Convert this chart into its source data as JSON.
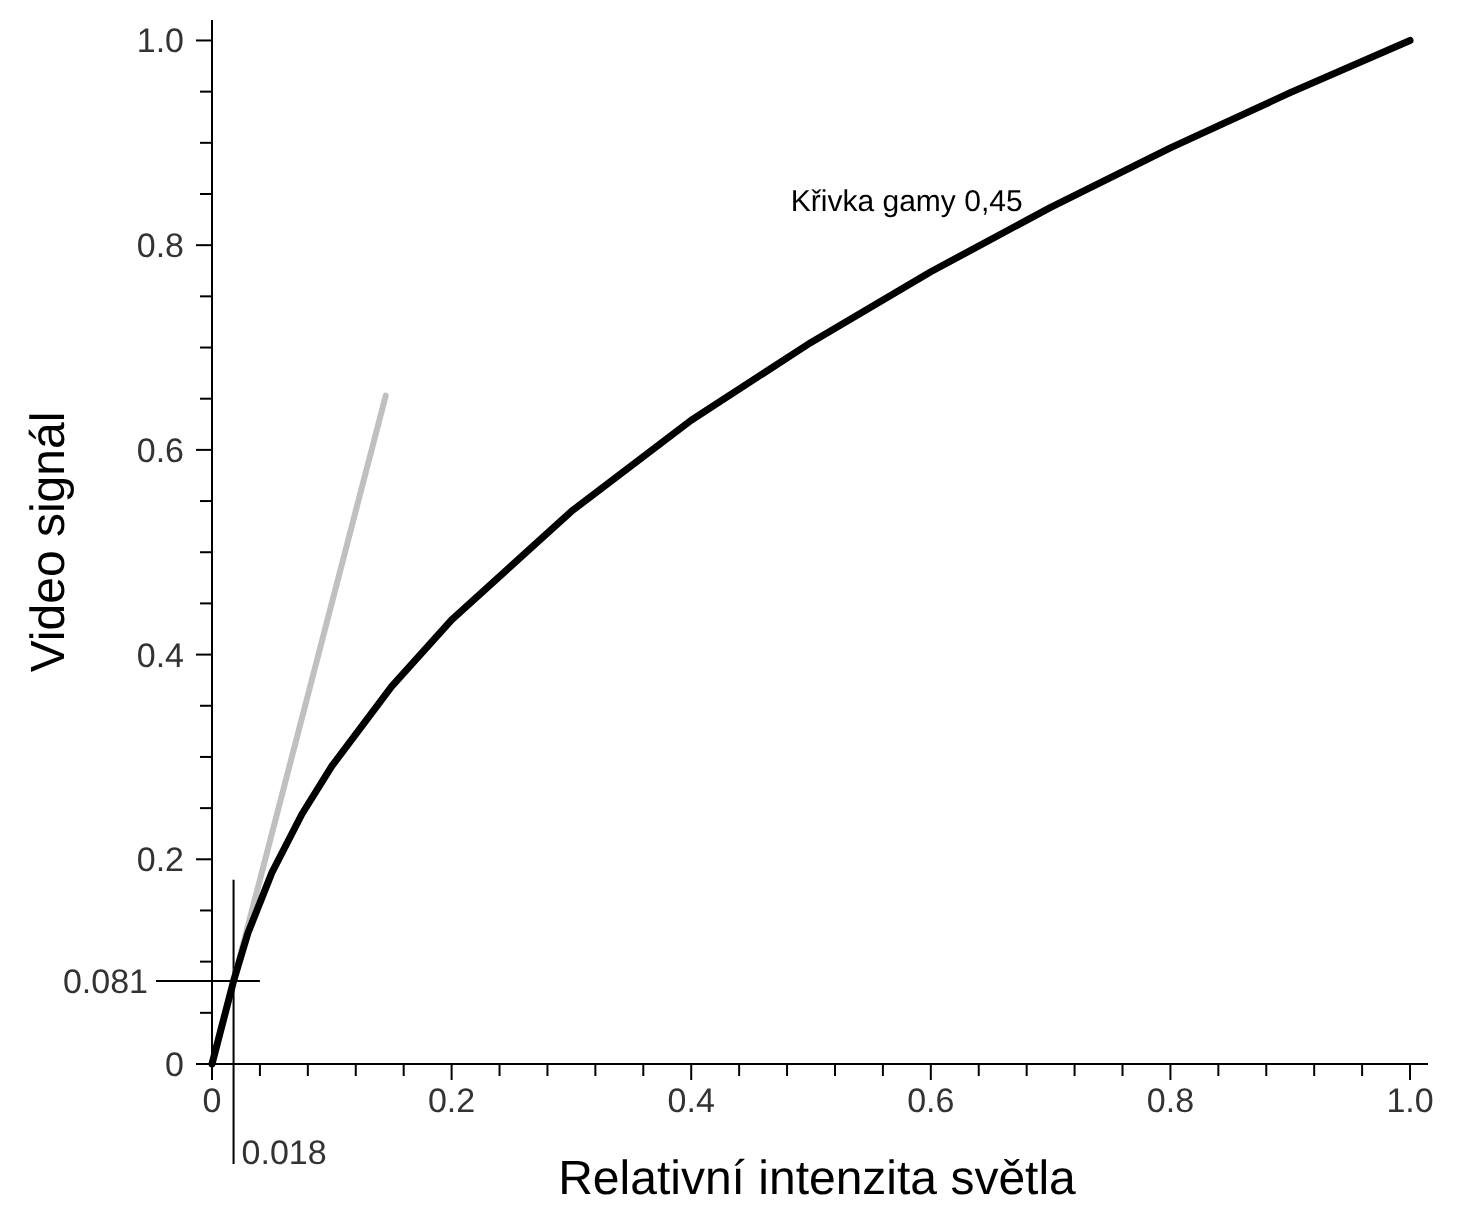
{
  "chart_data": {
    "type": "line",
    "xlabel": "Relativní intenzita světla",
    "ylabel": "Video signál",
    "xlim": [
      0,
      1.015
    ],
    "ylim": [
      0,
      1.02
    ],
    "xticks": [
      {
        "value": 0,
        "label": "0"
      },
      {
        "value": 0.04,
        "label": null
      },
      {
        "value": 0.08,
        "label": null
      },
      {
        "value": 0.12,
        "label": null
      },
      {
        "value": 0.16,
        "label": null
      },
      {
        "value": 0.2,
        "label": "0.2"
      },
      {
        "value": 0.24,
        "label": null
      },
      {
        "value": 0.28,
        "label": null
      },
      {
        "value": 0.32,
        "label": null
      },
      {
        "value": 0.36,
        "label": null
      },
      {
        "value": 0.4,
        "label": "0.4"
      },
      {
        "value": 0.44,
        "label": null
      },
      {
        "value": 0.48,
        "label": null
      },
      {
        "value": 0.52,
        "label": null
      },
      {
        "value": 0.56,
        "label": null
      },
      {
        "value": 0.6,
        "label": "0.6"
      },
      {
        "value": 0.64,
        "label": null
      },
      {
        "value": 0.68,
        "label": null
      },
      {
        "value": 0.72,
        "label": null
      },
      {
        "value": 0.76,
        "label": null
      },
      {
        "value": 0.8,
        "label": "0.8"
      },
      {
        "value": 0.84,
        "label": null
      },
      {
        "value": 0.88,
        "label": null
      },
      {
        "value": 0.92,
        "label": null
      },
      {
        "value": 0.96,
        "label": null
      },
      {
        "value": 1.0,
        "label": "1.0"
      }
    ],
    "yticks": [
      {
        "value": 0,
        "label": "0"
      },
      {
        "value": 0.05,
        "label": null
      },
      {
        "value": 0.1,
        "label": null
      },
      {
        "value": 0.15,
        "label": null
      },
      {
        "value": 0.2,
        "label": "0.2"
      },
      {
        "value": 0.25,
        "label": null
      },
      {
        "value": 0.3,
        "label": null
      },
      {
        "value": 0.35,
        "label": null
      },
      {
        "value": 0.4,
        "label": "0.4"
      },
      {
        "value": 0.45,
        "label": null
      },
      {
        "value": 0.5,
        "label": null
      },
      {
        "value": 0.55,
        "label": null
      },
      {
        "value": 0.6,
        "label": "0.6"
      },
      {
        "value": 0.65,
        "label": null
      },
      {
        "value": 0.7,
        "label": null
      },
      {
        "value": 0.75,
        "label": null
      },
      {
        "value": 0.8,
        "label": "0.8"
      },
      {
        "value": 0.85,
        "label": null
      },
      {
        "value": 0.9,
        "label": null
      },
      {
        "value": 0.95,
        "label": null
      },
      {
        "value": 1.0,
        "label": "1.0"
      }
    ],
    "grid": false,
    "marker": "none",
    "line_style": "solid",
    "series": [
      {
        "color": "#c0c0c0",
        "x": [
          0.018,
          0.145
        ],
        "values": [
          0.081,
          0.653
        ]
      },
      {
        "name": "Křivka gamy 0,45",
        "color": "#000000",
        "x": [
          0,
          0.018,
          0.03,
          0.05,
          0.075,
          0.1,
          0.15,
          0.2,
          0.3,
          0.4,
          0.5,
          0.6,
          0.7,
          0.8,
          0.9,
          1.0
        ],
        "values": [
          0,
          0.081,
          0.128,
          0.187,
          0.244,
          0.291,
          0.369,
          0.434,
          0.54,
          0.629,
          0.705,
          0.774,
          0.837,
          0.895,
          0.949,
          1.0
        ]
      }
    ],
    "ref_lines": [
      {
        "axis": "x",
        "value": 0.018,
        "label": "0.018"
      },
      {
        "axis": "y",
        "value": 0.081,
        "label": "0.081"
      }
    ]
  }
}
